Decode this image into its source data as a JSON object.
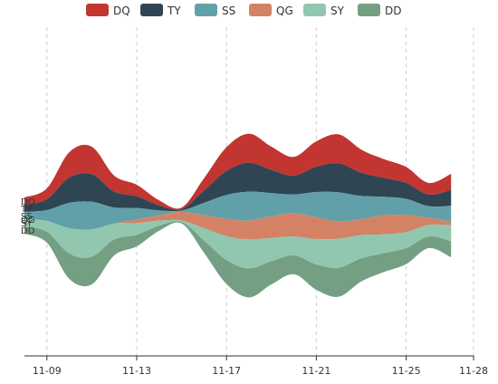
{
  "chart_data": {
    "type": "area",
    "subtype": "themeRiver",
    "x_label": "",
    "y_label": "",
    "x_ticks": [
      "11-09",
      "11-13",
      "11-17",
      "11-21",
      "11-25",
      "11-28"
    ],
    "x_range": [
      "2015-11-08",
      "2015-11-28"
    ],
    "grid": "vertical dashed lines at x ticks",
    "legend_position": "top-center",
    "dates": [
      "2015-11-08",
      "2015-11-09",
      "2015-11-10",
      "2015-11-11",
      "2015-11-12",
      "2015-11-13",
      "2015-11-14",
      "2015-11-15",
      "2015-11-16",
      "2015-11-17",
      "2015-11-18",
      "2015-11-19",
      "2015-11-20",
      "2015-11-21",
      "2015-11-22",
      "2015-11-23",
      "2015-11-24",
      "2015-11-25",
      "2015-11-26",
      "2015-11-27"
    ],
    "series": [
      {
        "name": "DQ",
        "color": "#c23531",
        "values": [
          10,
          15,
          35,
          38,
          22,
          16,
          7,
          2,
          17,
          33,
          40,
          32,
          26,
          35,
          40,
          32,
          26,
          22,
          16,
          22
        ]
      },
      {
        "name": "TY",
        "color": "#2f4554",
        "values": [
          10,
          15,
          35,
          38,
          22,
          16,
          7,
          2,
          17,
          33,
          40,
          32,
          26,
          35,
          40,
          32,
          26,
          22,
          16,
          22
        ]
      },
      {
        "name": "SS",
        "color": "#61a0a8",
        "values": [
          10,
          15,
          35,
          38,
          22,
          16,
          7,
          2,
          17,
          33,
          40,
          32,
          26,
          35,
          40,
          32,
          26,
          22,
          16,
          22
        ]
      },
      {
        "name": "QG",
        "color": "#d48265",
        "values": [
          0,
          0,
          0,
          0,
          0,
          5,
          7,
          12,
          18,
          24,
          26,
          30,
          32,
          30,
          24,
          22,
          26,
          24,
          10,
          5
        ]
      },
      {
        "name": "SY",
        "color": "#91c7ae",
        "values": [
          10,
          15,
          35,
          38,
          22,
          16,
          7,
          2,
          17,
          33,
          40,
          32,
          26,
          35,
          40,
          32,
          26,
          22,
          16,
          22
        ]
      },
      {
        "name": "DD",
        "color": "#749f83",
        "values": [
          10,
          15,
          35,
          38,
          22,
          16,
          7,
          2,
          17,
          33,
          40,
          32,
          26,
          35,
          40,
          32,
          26,
          22,
          16,
          22
        ]
      }
    ]
  }
}
